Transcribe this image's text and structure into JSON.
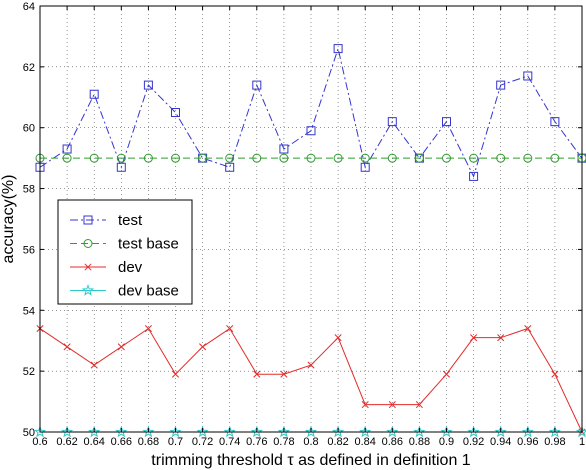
{
  "chart_data": {
    "type": "line",
    "xlabel": "trimming threshold τ as defined in definition 1",
    "ylabel": "accuracy(%)",
    "xlim": [
      0.6,
      1.0
    ],
    "ylim": [
      50,
      64
    ],
    "grid": true,
    "legend_position": "middle-left",
    "x": [
      0.6,
      0.62,
      0.64,
      0.66,
      0.68,
      0.7,
      0.72,
      0.74,
      0.76,
      0.78,
      0.8,
      0.82,
      0.84,
      0.86,
      0.88,
      0.9,
      0.92,
      0.94,
      0.96,
      0.98,
      1
    ],
    "x_tick_labels": [
      "0.6",
      "0.62",
      "0.64",
      "0.66",
      "0.68",
      "0.7",
      "0.72",
      "0.74",
      "0.76",
      "0.78",
      "0.8",
      "0.82",
      "0.84",
      "0.86",
      "0.88",
      "0.9",
      "0.92",
      "0.94",
      "0.96",
      "0.98",
      "1"
    ],
    "y_ticks": [
      50,
      52,
      54,
      56,
      58,
      60,
      62,
      64
    ],
    "y_tick_labels": [
      "50",
      "52",
      "54",
      "56",
      "58",
      "60",
      "62",
      "64"
    ],
    "series": [
      {
        "name": "test",
        "color": "#3535d0",
        "line_style": "dash-dot",
        "marker": "square",
        "values": [
          58.7,
          59.3,
          61.1,
          58.7,
          61.4,
          60.5,
          59.0,
          58.7,
          61.4,
          59.3,
          59.9,
          62.6,
          58.7,
          60.2,
          59.0,
          60.2,
          58.4,
          61.4,
          61.7,
          60.2,
          59.0
        ]
      },
      {
        "name": "test base",
        "color": "#2e9c2e",
        "line_style": "dashed",
        "marker": "circle",
        "values": [
          59,
          59,
          59,
          59,
          59,
          59,
          59,
          59,
          59,
          59,
          59,
          59,
          59,
          59,
          59,
          59,
          59,
          59,
          59,
          59,
          59
        ]
      },
      {
        "name": "dev",
        "color": "#e52b2b",
        "line_style": "solid",
        "marker": "x",
        "values": [
          53.4,
          52.8,
          52.2,
          52.8,
          53.4,
          51.9,
          52.8,
          53.4,
          51.9,
          51.9,
          52.2,
          53.1,
          50.9,
          50.9,
          50.9,
          51.9,
          53.1,
          53.1,
          53.4,
          51.9,
          50.0
        ]
      },
      {
        "name": "dev base",
        "color": "#2ec9c9",
        "line_style": "solid",
        "marker": "star",
        "values": [
          50,
          50,
          50,
          50,
          50,
          50,
          50,
          50,
          50,
          50,
          50,
          50,
          50,
          50,
          50,
          50,
          50,
          50,
          50,
          50,
          50
        ]
      }
    ]
  }
}
